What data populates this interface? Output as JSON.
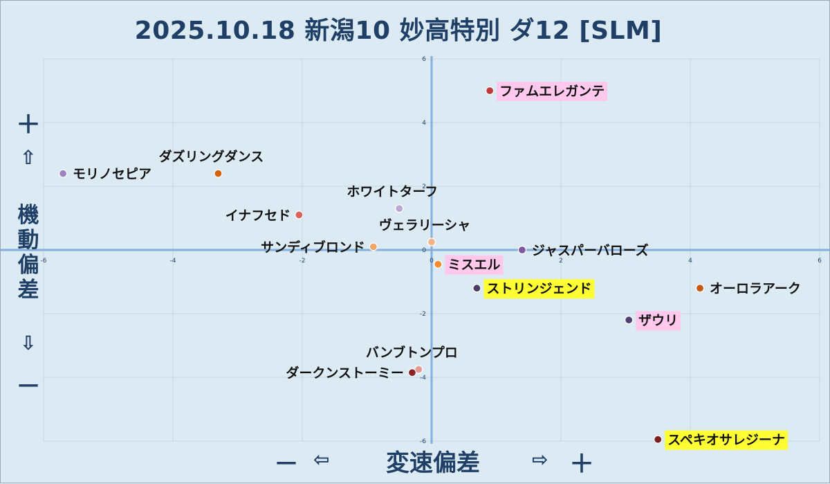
{
  "title": "2025.10.18 新潟10 妙高特別 ダ12 [SLM]",
  "axis_labels": {
    "y_label": "機動偏差",
    "y_plus": "＋",
    "y_up_arrow": "⇧",
    "y_down_arrow": "⇩",
    "y_minus": "－",
    "x_label": "変速偏差",
    "x_minus": "－",
    "x_left_arrow": "⇦",
    "x_right_arrow": "⇨",
    "x_plus": "＋"
  },
  "chart_data": {
    "type": "scatter",
    "title": "2025.10.18 新潟10 妙高特別 ダ12 [SLM]",
    "xlabel": "変速偏差",
    "ylabel": "機動偏差",
    "xlim": [
      -6,
      6
    ],
    "ylim": [
      -6,
      6
    ],
    "x_ticks": [
      -6,
      -4,
      -2,
      0,
      2,
      4,
      6
    ],
    "y_ticks": [
      6,
      4,
      2,
      0,
      -2,
      -4,
      -6
    ],
    "grid": true,
    "points": [
      {
        "name": "ファムエレガンテ",
        "x": 0.9,
        "y": 5.0,
        "color": "#c0393b",
        "highlight": "#ffc8ec",
        "label_side": "right"
      },
      {
        "name": "ダズリングダンス",
        "x": -3.3,
        "y": 2.4,
        "color": "#d4620b",
        "highlight": "",
        "label_side": "above"
      },
      {
        "name": "モリノセピア",
        "x": -5.7,
        "y": 2.4,
        "color": "#9b84c0",
        "highlight": "",
        "label_side": "right"
      },
      {
        "name": "ホワイトターフ",
        "x": -0.5,
        "y": 1.3,
        "color": "#b9a9d2",
        "highlight": "",
        "label_side": "above"
      },
      {
        "name": "イナフセド",
        "x": -2.05,
        "y": 1.1,
        "color": "#d9645f",
        "highlight": "",
        "label_side": "left"
      },
      {
        "name": "ヴェラリーシャ",
        "x": 0.0,
        "y": 0.25,
        "color": "#f2b485",
        "highlight": "",
        "label_side": "above"
      },
      {
        "name": "サンディブロンド",
        "x": -0.9,
        "y": 0.1,
        "color": "#f2a56b",
        "highlight": "",
        "label_side": "left"
      },
      {
        "name": "ジャスパーバローズ",
        "x": 1.4,
        "y": 0.0,
        "color": "#7b5aa3",
        "highlight": "",
        "label_side": "right"
      },
      {
        "name": "ミスエル",
        "x": 0.1,
        "y": -0.45,
        "color": "#f58a2e",
        "highlight": "#ffc8ec",
        "label_side": "right"
      },
      {
        "name": "ストリンジェンド",
        "x": 0.7,
        "y": -1.2,
        "color": "#4b3c67",
        "highlight": "#ffff33",
        "label_side": "right"
      },
      {
        "name": "オーロラアーク",
        "x": 4.15,
        "y": -1.2,
        "color": "#c95710",
        "highlight": "",
        "label_side": "right"
      },
      {
        "name": "ザウリ",
        "x": 3.05,
        "y": -2.2,
        "color": "#523f72",
        "highlight": "#ffc8ec",
        "label_side": "right"
      },
      {
        "name": "バンブトンプロ",
        "x": -0.2,
        "y": -3.75,
        "color": "#e59a95",
        "highlight": "",
        "label_side": "above"
      },
      {
        "name": "ダークンストーミー",
        "x": -0.3,
        "y": -3.85,
        "color": "#8b2323",
        "highlight": "",
        "label_side": "left"
      },
      {
        "name": "スペキオサレジーナ",
        "x": 3.5,
        "y": -5.95,
        "color": "#7b1f1f",
        "highlight": "#ffff33",
        "label_side": "right"
      }
    ]
  }
}
